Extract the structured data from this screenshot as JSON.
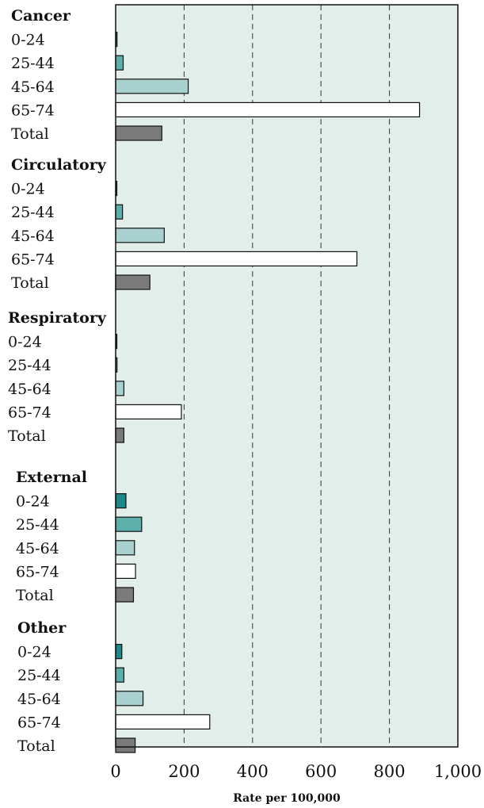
{
  "chart_data": {
    "type": "bar",
    "orientation": "horizontal",
    "xlabel": "Rate per 100,000",
    "xlim": [
      0,
      1000
    ],
    "xticks": [
      0,
      200,
      400,
      600,
      800,
      1000
    ],
    "xtick_labels": [
      "0",
      "200",
      "400",
      "600",
      "800",
      "1,000"
    ],
    "grid": "vertical dashed",
    "background_color": "#e2eeea",
    "groups": [
      {
        "name": "Cancer",
        "categories": [
          "0-24",
          "25-44",
          "45-64",
          "65-74",
          "Total"
        ],
        "values": [
          4,
          22,
          212,
          888,
          135
        ]
      },
      {
        "name": "Circulatory",
        "categories": [
          "0-24",
          "25-44",
          "45-64",
          "65-74",
          "Total"
        ],
        "values": [
          2,
          20,
          142,
          705,
          100
        ]
      },
      {
        "name": "Respiratory",
        "categories": [
          "0-24",
          "25-44",
          "45-64",
          "65-74",
          "Total"
        ],
        "values": [
          2,
          4,
          24,
          192,
          24
        ]
      },
      {
        "name": "External",
        "categories": [
          "0-24",
          "25-44",
          "45-64",
          "65-74",
          "Total"
        ],
        "values": [
          30,
          76,
          55,
          58,
          52
        ]
      },
      {
        "name": "Other",
        "categories": [
          "0-24",
          "25-44",
          "45-64",
          "65-74",
          "Total"
        ],
        "values": [
          18,
          24,
          80,
          275,
          57
        ]
      }
    ],
    "category_colors": {
      "0-24": "#1b8a88",
      "25-44": "#5bb0ac",
      "45-64": "#a9d1cf",
      "65-74": "#ffffff",
      "Total": "#7a7a7a"
    }
  }
}
